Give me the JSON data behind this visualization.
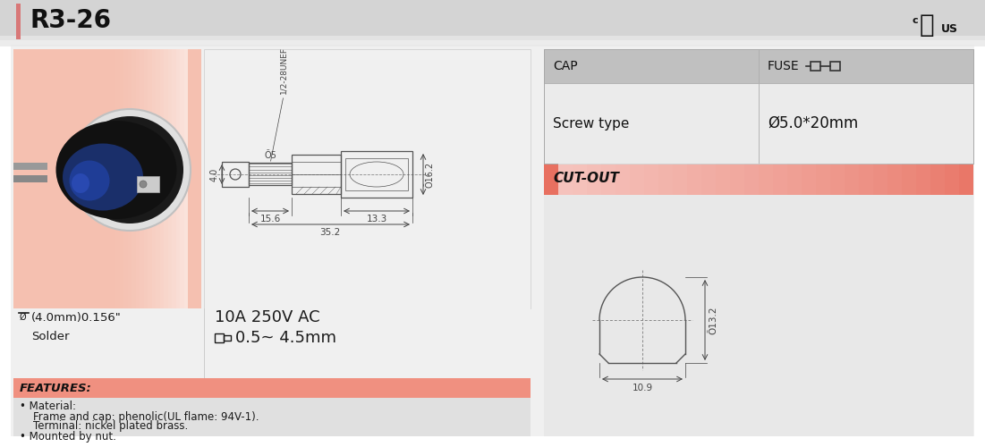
{
  "title": "R3-26",
  "bg_color": "#ffffff",
  "header_bg": "#d4d4d4",
  "header_bar_color": "#e8a0a0",
  "table_header_bg": "#bebebe",
  "cutout_label_bg_left": "#e87878",
  "cutout_label_bg_right": "#f8d0c8",
  "text_color": "#1a1a1a",
  "dim_color": "#444444",
  "line_color": "#555555",
  "features_label": "FEATURES:",
  "spec_terminal": "(4.0mm)0.156\"",
  "spec_terminal2": "Solder",
  "spec_rating": "10A 250V AC",
  "spec_wire": "0.5~ 4.5mm",
  "cap_label": "CAP",
  "fuse_label": "FUSE",
  "cap_value": "Screw type",
  "fuse_value": "Ø5.0*20mm",
  "cutout_label": "CUT-OUT",
  "dim_thread": "1/2-28UNEF",
  "dim_4_0": "4.0",
  "dim_phi5": "Õ5",
  "dim_phi16": "Õ16.2",
  "dim_15_6": "15.6",
  "dim_13_3": "13.3",
  "dim_35_2": "35.2",
  "dim_phi13": "Õ13.2",
  "dim_10_9": "10.9",
  "feat_line1": "• Material:",
  "feat_line2": "    Frame and cap: phenolic(UL flame: 94V-1).",
  "feat_line3": "    Terminal: nickel plated brass.",
  "feat_line4": "• Mounted by nut."
}
